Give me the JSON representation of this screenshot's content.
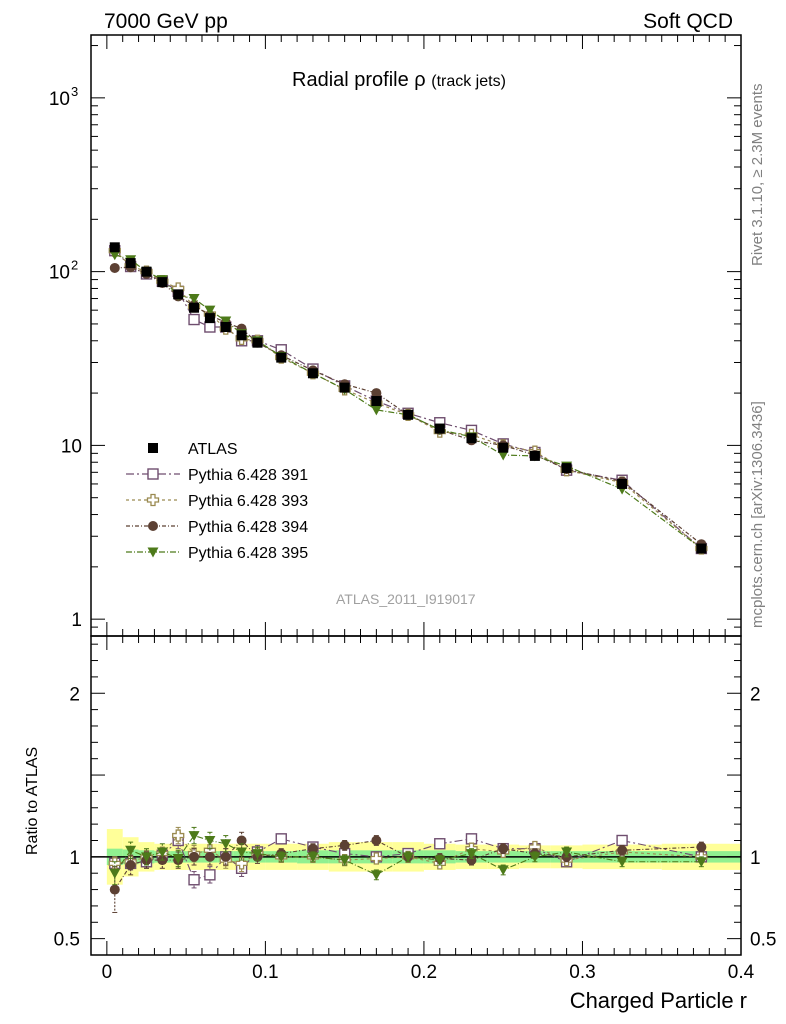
{
  "header": {
    "left": "7000 GeV pp",
    "right": "Soft QCD",
    "side_top": "Rivet 3.1.10, ≥ 2.3M events",
    "side_bottom": "mcplots.cern.ch [arXiv:1306.3436]"
  },
  "chart_data": [
    {
      "type": "scatter",
      "title_main": "Radial profile ρ",
      "title_sub": "(track jets)",
      "analysis_label": "ATLAS_2011_I919017",
      "yscale": "log",
      "ylim": [
        0.8,
        2300
      ],
      "xlim": [
        -0.01,
        0.4
      ],
      "y_ticks": [
        {
          "v": 1,
          "label": "1"
        },
        {
          "v": 10,
          "label": "10"
        },
        {
          "v": 100,
          "label": "10",
          "exp": "2"
        },
        {
          "v": 1000,
          "label": "10",
          "exp": "3"
        }
      ],
      "legend_placement": "lower-left",
      "x": [
        0.005,
        0.015,
        0.025,
        0.035,
        0.045,
        0.055,
        0.065,
        0.075,
        0.085,
        0.095,
        0.11,
        0.13,
        0.15,
        0.17,
        0.19,
        0.21,
        0.23,
        0.25,
        0.27,
        0.29,
        0.325,
        0.375
      ],
      "x_bins": [
        0.0,
        0.01,
        0.02,
        0.03,
        0.04,
        0.05,
        0.06,
        0.07,
        0.08,
        0.09,
        0.1,
        0.12,
        0.14,
        0.16,
        0.18,
        0.2,
        0.22,
        0.24,
        0.26,
        0.28,
        0.3,
        0.35,
        0.4
      ],
      "series": [
        {
          "name": "ATLAS",
          "color": "#000000",
          "marker": "square-filled",
          "values": [
            138,
            112,
            100,
            87,
            74,
            62,
            54,
            48,
            43,
            39,
            32,
            26,
            21.5,
            18,
            15,
            12.5,
            11,
            9.7,
            8.7,
            7.4,
            6.0,
            2.55
          ]
        },
        {
          "name": "Pythia 6.428 391",
          "color": "#6f4e6f",
          "marker": "square-open",
          "values": [
            132,
            107,
            97,
            88,
            77,
            53,
            48,
            48,
            40,
            40,
            35.5,
            27.5,
            22,
            18,
            15.3,
            13.5,
            12.2,
            10.2,
            9.1,
            7.2,
            6.3,
            2.55
          ]
        },
        {
          "name": "Pythia 6.428 393",
          "color": "#9a8a50",
          "marker": "cross-open",
          "values": [
            132,
            108,
            100,
            88,
            80,
            63,
            57,
            47,
            41,
            40,
            32,
            26,
            21,
            17.5,
            15,
            12,
            11.5,
            10,
            9.2,
            7.2,
            6.1,
            2.55
          ]
        },
        {
          "name": "Pythia 6.428 394",
          "color": "#5c4033",
          "marker": "circle-filled",
          "values": [
            105,
            106,
            97,
            86,
            72,
            64,
            56,
            51,
            47,
            39,
            33,
            27,
            22.5,
            20,
            15,
            12.3,
            10.7,
            10,
            8.8,
            7.3,
            6.2,
            2.7
          ]
        },
        {
          "name": "Pythia 6.428 395",
          "color": "#4d7a1a",
          "marker": "triangle-down-filled",
          "values": [
            125,
            117,
            100,
            90,
            73,
            70,
            60,
            52,
            44,
            40,
            32.5,
            26,
            21,
            16,
            15,
            12.3,
            11.2,
            8.8,
            8.7,
            7.6,
            5.6,
            2.55
          ]
        }
      ]
    },
    {
      "type": "scatter",
      "ylabel": "Ratio to ATLAS",
      "xlabel": "Charged Particle r",
      "ylim": [
        0.4,
        2.35
      ],
      "xlim": [
        -0.01,
        0.4
      ],
      "y_ticks": [
        {
          "v": 0.5,
          "label": "0.5"
        },
        {
          "v": 1,
          "label": "1"
        },
        {
          "v": 2,
          "label": "2"
        }
      ],
      "x_ticks": [
        {
          "v": 0,
          "label": "0"
        },
        {
          "v": 0.1,
          "label": "0.1"
        },
        {
          "v": 0.2,
          "label": "0.2"
        },
        {
          "v": 0.3,
          "label": "0.3"
        },
        {
          "v": 0.4,
          "label": "0.4"
        }
      ],
      "reference_line": 1,
      "band_inner_halfwidth": [
        0.05,
        0.045,
        0.04,
        0.035,
        0.035,
        0.035,
        0.035,
        0.035,
        0.035,
        0.035,
        0.035,
        0.04,
        0.04,
        0.04,
        0.04,
        0.04,
        0.035,
        0.035,
        0.035,
        0.035,
        0.035,
        0.035
      ],
      "band_outer_halfwidth": [
        0.17,
        0.12,
        0.09,
        0.08,
        0.08,
        0.08,
        0.08,
        0.08,
        0.08,
        0.08,
        0.08,
        0.08,
        0.09,
        0.09,
        0.09,
        0.08,
        0.075,
        0.075,
        0.07,
        0.07,
        0.075,
        0.08
      ],
      "series": [
        {
          "name": "Pythia 6.428 391",
          "color": "#6f4e6f",
          "marker": "square-open",
          "values": [
            0.96,
            0.96,
            0.97,
            1.01,
            1.1,
            0.86,
            0.89,
            1.0,
            0.93,
            1.03,
            1.11,
            1.06,
            1.02,
            1.0,
            1.02,
            1.08,
            1.11,
            1.05,
            1.05,
            0.97,
            1.1,
            1.0
          ],
          "errors": [
            0.04,
            0.04,
            0.04,
            0.04,
            0.05,
            0.05,
            0.05,
            0.05,
            0.05,
            0.04,
            0.03,
            0.03,
            0.03,
            0.03,
            0.03,
            0.03,
            0.03,
            0.03,
            0.03,
            0.03,
            0.03,
            0.03
          ]
        },
        {
          "name": "Pythia 6.428 393",
          "color": "#9a8a50",
          "marker": "cross-open",
          "values": [
            0.96,
            0.97,
            1.0,
            1.02,
            1.13,
            1.02,
            1.04,
            0.98,
            0.96,
            1.02,
            1.0,
            1.0,
            0.98,
            0.99,
            1.0,
            0.96,
            1.05,
            1.03,
            1.06,
            0.98,
            1.03,
            1.0
          ],
          "errors": [
            0.04,
            0.04,
            0.04,
            0.04,
            0.05,
            0.05,
            0.05,
            0.05,
            0.05,
            0.04,
            0.03,
            0.03,
            0.03,
            0.03,
            0.03,
            0.03,
            0.03,
            0.03,
            0.03,
            0.03,
            0.03,
            0.03
          ]
        },
        {
          "name": "Pythia 6.428 394",
          "color": "#5c4033",
          "marker": "circle-filled",
          "values": [
            0.8,
            0.95,
            0.98,
            0.98,
            0.98,
            1.0,
            1.0,
            1.0,
            1.1,
            1.0,
            1.02,
            1.05,
            1.07,
            1.1,
            1.0,
            0.99,
            0.98,
            1.05,
            1.02,
            1.0,
            1.04,
            1.06
          ],
          "errors": [
            0.14,
            0.06,
            0.05,
            0.05,
            0.05,
            0.05,
            0.05,
            0.05,
            0.05,
            0.04,
            0.03,
            0.03,
            0.03,
            0.03,
            0.03,
            0.03,
            0.03,
            0.03,
            0.03,
            0.03,
            0.03,
            0.03
          ]
        },
        {
          "name": "Pythia 6.428 395",
          "color": "#4d7a1a",
          "marker": "triangle-down-filled",
          "values": [
            0.9,
            1.04,
            1.0,
            1.03,
            0.99,
            1.13,
            1.1,
            1.08,
            1.03,
            1.02,
            1.0,
            1.0,
            0.98,
            0.89,
            1.0,
            0.98,
            1.02,
            0.92,
            1.0,
            1.03,
            0.97,
            0.97
          ],
          "errors": [
            0.07,
            0.05,
            0.05,
            0.05,
            0.05,
            0.05,
            0.05,
            0.05,
            0.05,
            0.04,
            0.03,
            0.03,
            0.03,
            0.03,
            0.03,
            0.03,
            0.03,
            0.03,
            0.03,
            0.03,
            0.03,
            0.03
          ]
        }
      ]
    }
  ]
}
